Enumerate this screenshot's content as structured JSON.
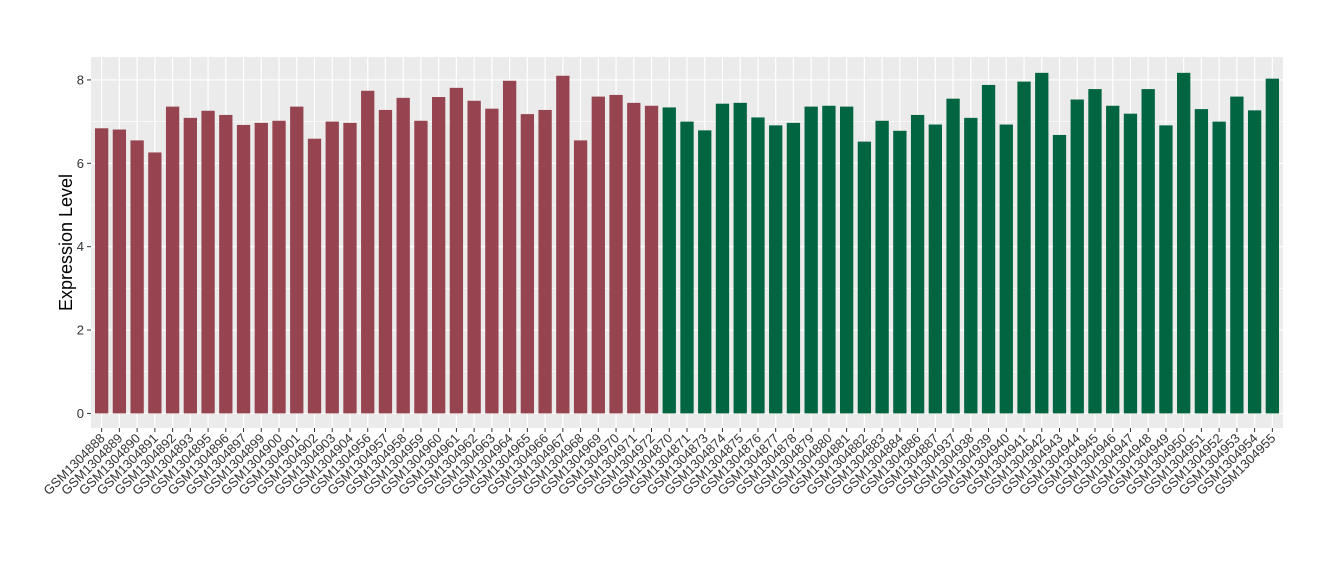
{
  "chart_data": {
    "type": "bar",
    "title": "",
    "xlabel": "",
    "ylabel": "Expression Level",
    "ylim": [
      -0.35,
      8.55
    ],
    "yticks": [
      0,
      2,
      4,
      6,
      8
    ],
    "grid": true,
    "legend": "none",
    "colors": {
      "group_1": "#974451",
      "group_2": "#006540",
      "panel_bg": "#EBEBEB",
      "grid": "#FFFFFF"
    },
    "categories": [
      "GSM1304888",
      "GSM1304889",
      "GSM1304890",
      "GSM1304891",
      "GSM1304892",
      "GSM1304893",
      "GSM1304895",
      "GSM1304896",
      "GSM1304897",
      "GSM1304899",
      "GSM1304900",
      "GSM1304901",
      "GSM1304902",
      "GSM1304903",
      "GSM1304904",
      "GSM1304956",
      "GSM1304957",
      "GSM1304958",
      "GSM1304959",
      "GSM1304960",
      "GSM1304961",
      "GSM1304962",
      "GSM1304963",
      "GSM1304964",
      "GSM1304965",
      "GSM1304966",
      "GSM1304967",
      "GSM1304968",
      "GSM1304969",
      "GSM1304970",
      "GSM1304971",
      "GSM1304972",
      "GSM1304870",
      "GSM1304871",
      "GSM1304873",
      "GSM1304874",
      "GSM1304875",
      "GSM1304876",
      "GSM1304877",
      "GSM1304878",
      "GSM1304879",
      "GSM1304880",
      "GSM1304881",
      "GSM1304882",
      "GSM1304883",
      "GSM1304884",
      "GSM1304886",
      "GSM1304887",
      "GSM1304937",
      "GSM1304938",
      "GSM1304939",
      "GSM1304940",
      "GSM1304941",
      "GSM1304942",
      "GSM1304943",
      "GSM1304944",
      "GSM1304945",
      "GSM1304946",
      "GSM1304947",
      "GSM1304948",
      "GSM1304949",
      "GSM1304950",
      "GSM1304951",
      "GSM1304952",
      "GSM1304953",
      "GSM1304954",
      "GSM1304955"
    ],
    "values": [
      6.84,
      6.81,
      6.55,
      6.26,
      7.36,
      7.09,
      7.26,
      7.16,
      6.92,
      6.97,
      7.02,
      7.36,
      6.59,
      7.0,
      6.97,
      7.74,
      7.28,
      7.57,
      7.02,
      7.59,
      7.81,
      7.5,
      7.31,
      7.98,
      7.18,
      7.28,
      8.1,
      6.55,
      7.6,
      7.64,
      7.45,
      7.38,
      7.34,
      7.0,
      6.79,
      7.43,
      7.45,
      7.1,
      6.91,
      6.97,
      7.36,
      7.38,
      7.36,
      6.52,
      7.02,
      6.78,
      7.16,
      6.93,
      7.55,
      7.09,
      7.88,
      6.93,
      7.96,
      8.17,
      6.68,
      7.53,
      7.78,
      7.38,
      7.19,
      7.78,
      6.91,
      8.17,
      7.3,
      7.0,
      7.6,
      7.27,
      8.03
    ],
    "group_index": [
      0,
      0,
      0,
      0,
      0,
      0,
      0,
      0,
      0,
      0,
      0,
      0,
      0,
      0,
      0,
      0,
      0,
      0,
      0,
      0,
      0,
      0,
      0,
      0,
      0,
      0,
      0,
      0,
      0,
      0,
      0,
      0,
      1,
      1,
      1,
      1,
      1,
      1,
      1,
      1,
      1,
      1,
      1,
      1,
      1,
      1,
      1,
      1,
      1,
      1,
      1,
      1,
      1,
      1,
      1,
      1,
      1,
      1,
      1,
      1,
      1,
      1,
      1,
      1,
      1,
      1,
      1
    ]
  }
}
